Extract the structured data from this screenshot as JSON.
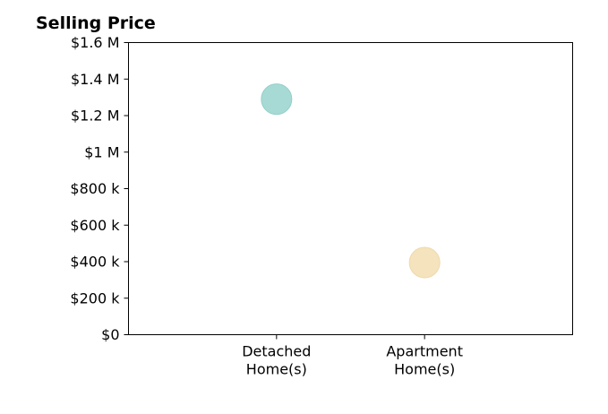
{
  "chart_data": {
    "type": "scatter",
    "title": "Selling Price",
    "xlabel": "",
    "ylabel": "",
    "categories": [
      [
        "Detached",
        "Home(s)"
      ],
      [
        "Apartment",
        "Home(s)"
      ]
    ],
    "values": [
      1290000,
      395000
    ],
    "colors": [
      "#a8dad5",
      "#f5e3bd"
    ],
    "edge_colors": [
      "#93cfc8",
      "#f0d9a8"
    ],
    "ylim": [
      0,
      1600000
    ],
    "yticks": [
      {
        "value": 0,
        "label": "$0"
      },
      {
        "value": 200000,
        "label": "$200 k"
      },
      {
        "value": 400000,
        "label": "$400 k"
      },
      {
        "value": 600000,
        "label": "$600 k"
      },
      {
        "value": 800000,
        "label": "$800 k"
      },
      {
        "value": 1000000,
        "label": "$1 M"
      },
      {
        "value": 1200000,
        "label": "$1.2 M"
      },
      {
        "value": 1400000,
        "label": "$1.4 M"
      },
      {
        "value": 1600000,
        "label": "$1.6 M"
      }
    ],
    "grid": false,
    "legend": "none"
  }
}
